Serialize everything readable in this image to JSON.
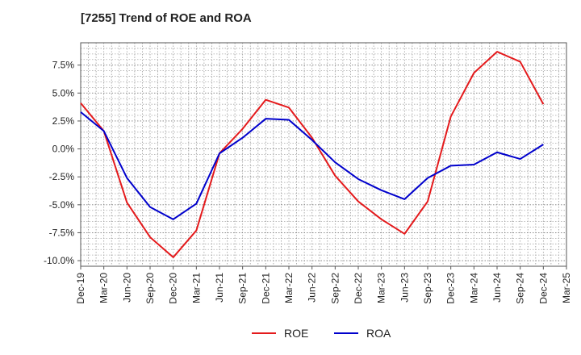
{
  "chart_data": {
    "type": "line",
    "title": "[7255]  Trend of ROE and ROA",
    "x": [
      "Dec-19",
      "Mar-20",
      "Jun-20",
      "Sep-20",
      "Dec-20",
      "Mar-21",
      "Jun-21",
      "Sep-21",
      "Dec-21",
      "Mar-22",
      "Jun-22",
      "Sep-22",
      "Dec-22",
      "Mar-23",
      "Jun-23",
      "Sep-23",
      "Dec-23",
      "Mar-24",
      "Jun-24",
      "Sep-24",
      "Dec-24",
      "Mar-25"
    ],
    "y_ticks": [
      "7.5%",
      "5.0%",
      "2.5%",
      "0.0%",
      "-2.5%",
      "-5.0%",
      "-7.5%",
      "-10.0%"
    ],
    "y_tick_values": [
      7.5,
      5.0,
      2.5,
      0.0,
      -2.5,
      -5.0,
      -7.5,
      -10.0
    ],
    "ylim": [
      -10.5,
      9.5
    ],
    "grid": true,
    "legend_position": "bottom-center",
    "series": [
      {
        "name": "ROE",
        "color": "#e41a1c",
        "values": [
          4.1,
          1.6,
          -4.8,
          -7.9,
          -9.7,
          -7.3,
          -0.4,
          1.8,
          4.4,
          3.7,
          1.0,
          -2.4,
          -4.7,
          -6.3,
          -7.6,
          -4.7,
          2.9,
          6.8,
          8.7,
          7.8,
          4.0,
          null
        ]
      },
      {
        "name": "ROA",
        "color": "#0000cc",
        "values": [
          3.3,
          1.6,
          -2.6,
          -5.2,
          -6.3,
          -4.9,
          -0.4,
          1.0,
          2.7,
          2.6,
          0.8,
          -1.2,
          -2.7,
          -3.7,
          -4.5,
          -2.6,
          -1.5,
          -1.4,
          -0.3,
          -0.9,
          0.4,
          null
        ]
      }
    ]
  }
}
